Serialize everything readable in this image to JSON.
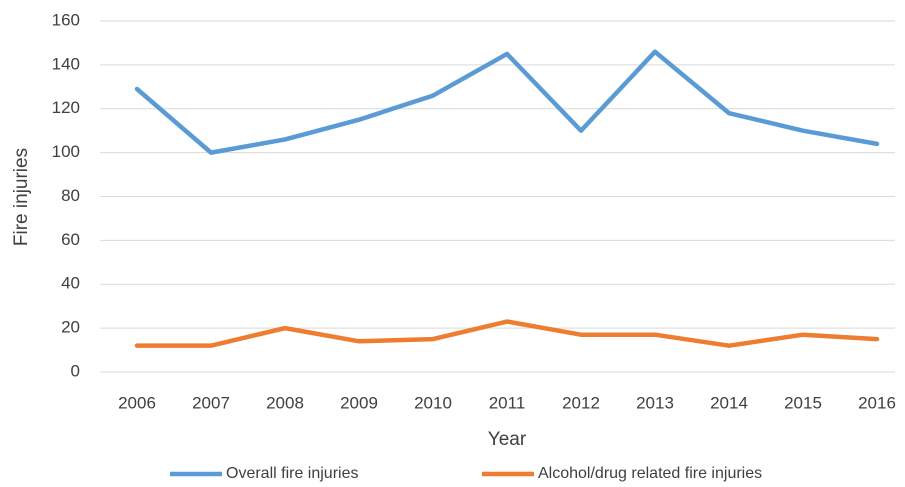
{
  "chart_data": {
    "type": "line",
    "x_label": "Year",
    "y_label": "Fire injuries",
    "categories": [
      "2006",
      "2007",
      "2008",
      "2009",
      "2010",
      "2011",
      "2012",
      "2013",
      "2014",
      "2015",
      "2016"
    ],
    "series": [
      {
        "name": "Overall fire injuries",
        "color": "#5b9bd5",
        "values": [
          129,
          100,
          106,
          115,
          126,
          145,
          110,
          146,
          118,
          110,
          104
        ]
      },
      {
        "name": "Alcohol/drug related fire injuries",
        "color": "#ed7d31",
        "values": [
          12,
          12,
          20,
          14,
          15,
          23,
          17,
          17,
          12,
          17,
          15
        ]
      }
    ],
    "ylim": [
      0,
      160
    ],
    "yticks": [
      0,
      20,
      40,
      60,
      80,
      100,
      120,
      140,
      160
    ],
    "grid": true,
    "legend": "bottom"
  }
}
